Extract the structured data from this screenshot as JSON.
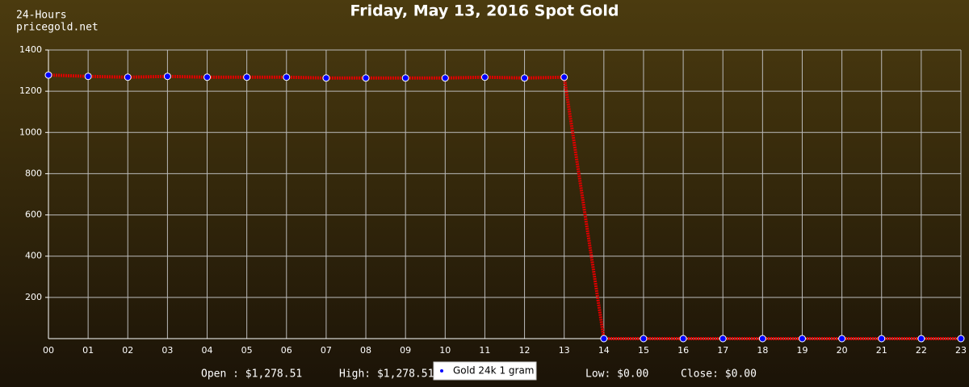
{
  "chart_data": {
    "type": "line",
    "title": "Friday, May 13, 2016 Spot Gold",
    "header_lines": [
      "24-Hours",
      "pricegold.net"
    ],
    "summary": [
      "Open : $1,278.51",
      "High: $1,278.51",
      "Low: $0.00",
      "Close: $0.00"
    ],
    "categories": [
      "00",
      "01",
      "02",
      "03",
      "04",
      "05",
      "06",
      "07",
      "08",
      "09",
      "10",
      "11",
      "12",
      "13",
      "14",
      "15",
      "16",
      "17",
      "18",
      "19",
      "20",
      "21",
      "22",
      "23"
    ],
    "series": [
      {
        "name": "Gold 24k 1 gram",
        "color": "#dd0000",
        "marker_color": "#0000ff",
        "values": [
          1278.51,
          1272,
          1268,
          1272,
          1268,
          1268,
          1268,
          1264,
          1264,
          1264,
          1264,
          1268,
          1264,
          1268,
          0,
          0,
          0,
          0,
          0,
          0,
          0,
          0,
          0,
          0
        ]
      }
    ],
    "ylim": [
      0,
      1400
    ],
    "yticks": [
      200,
      400,
      600,
      800,
      1000,
      1200,
      1400
    ],
    "grid": true
  }
}
